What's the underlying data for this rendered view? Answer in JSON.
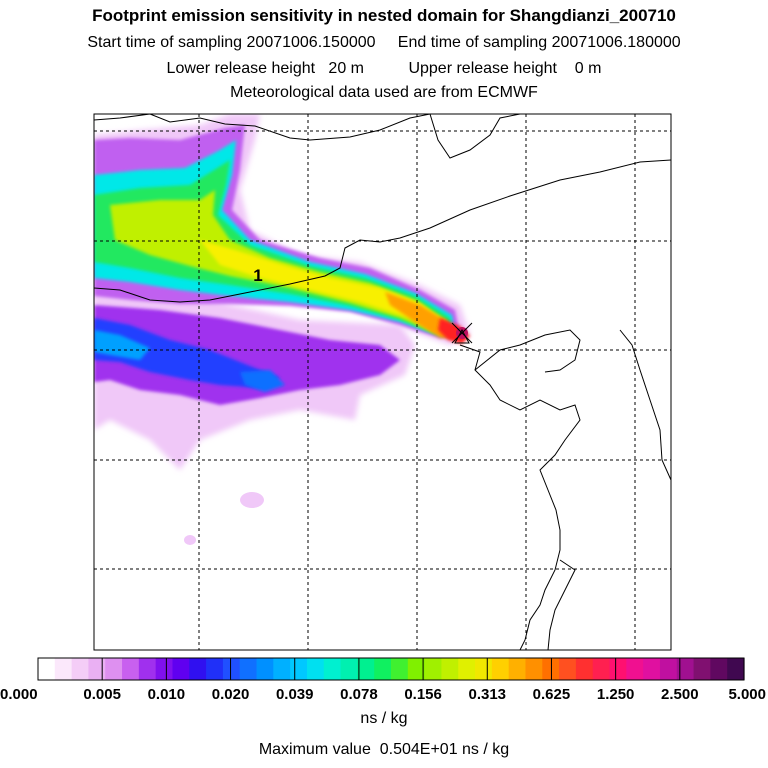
{
  "header": {
    "title": "Footprint emission sensitivity in nested domain for Shangdianzi_200710",
    "start_label": "Start time of sampling 20071006.150000",
    "end_label": "End time of sampling 20071006.180000",
    "lower_label": "Lower release height   20 m",
    "upper_label": "Upper release height    0 m",
    "met_label": "Meteorological data used are from ECMWF"
  },
  "map": {
    "plume_label": "1",
    "plume_colors": {
      "light": "#f0c8f8",
      "magenta": "#c060f0",
      "violet": "#8000ff",
      "blue": "#2040ff",
      "azure": "#00a0ff",
      "cyan": "#00e8e8",
      "green": "#20e860",
      "yellowgreen": "#c0f000",
      "yellow": "#f8f000",
      "orange": "#ffa000",
      "red": "#ff2020"
    }
  },
  "colorbar": {
    "tick_labels": [
      "0.000",
      "0.005",
      "0.010",
      "0.020",
      "0.039",
      "0.078",
      "0.156",
      "0.313",
      "0.625",
      "1.250",
      "2.500",
      "5.000"
    ],
    "colors": [
      "#ffffff",
      "#fbe8fb",
      "#f4cdf7",
      "#eab0f3",
      "#de90f0",
      "#c860ef",
      "#a030ee",
      "#8010ee",
      "#6000f0",
      "#3010f0",
      "#2030f8",
      "#2050ff",
      "#1070ff",
      "#0090ff",
      "#00b0ff",
      "#00c8ff",
      "#00e0f0",
      "#00f0d0",
      "#00f0b0",
      "#00f090",
      "#10f060",
      "#40f030",
      "#80f000",
      "#a0f000",
      "#c0f000",
      "#e0f000",
      "#f0e800",
      "#ffd000",
      "#ffb000",
      "#ff9000",
      "#ff7000",
      "#ff5020",
      "#ff3030",
      "#ff2050",
      "#ff1070",
      "#f01090",
      "#e010a0",
      "#c010a0",
      "#a01090",
      "#801070",
      "#600860",
      "#400850"
    ],
    "unit_label": "ns / kg",
    "max_label": "Maximum value  0.504E+01 ns / kg"
  }
}
